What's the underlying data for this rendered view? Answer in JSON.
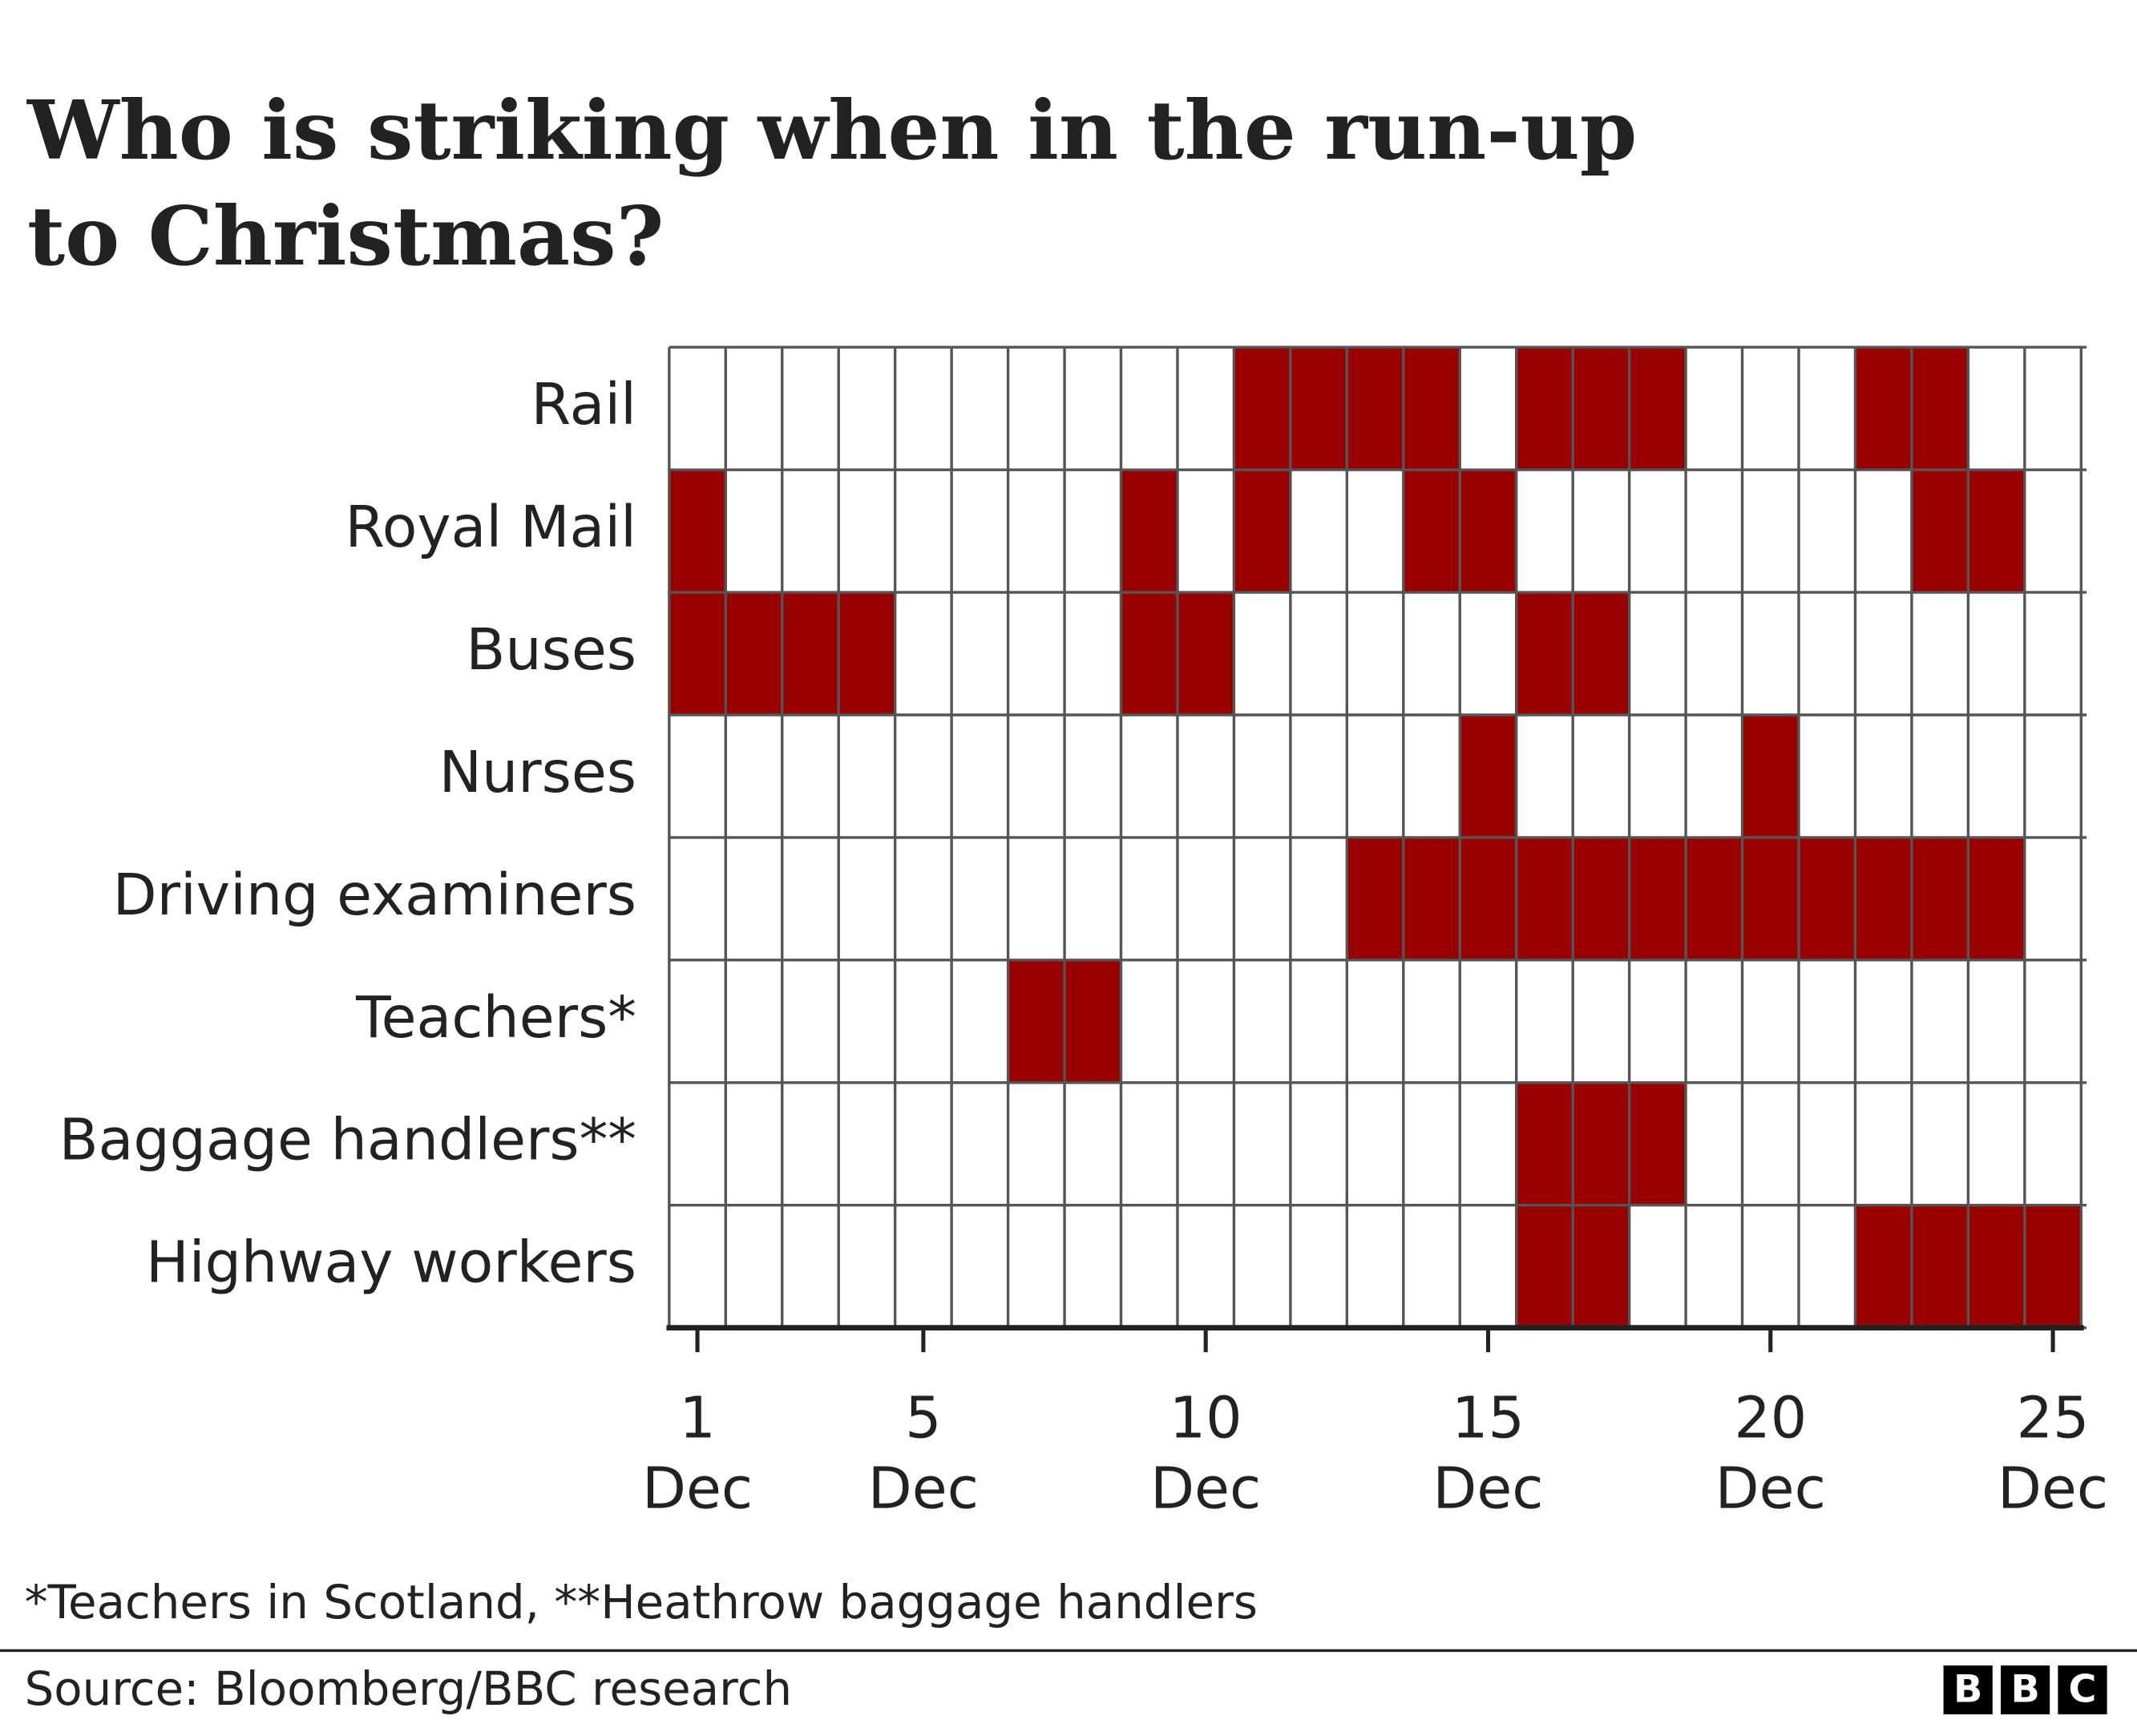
{
  "chart_data": {
    "type": "timeline",
    "title": "Who is striking when in the run-up to Christmas?",
    "series": [
      {
        "name": "Rail",
        "days": [
          11,
          12,
          13,
          14,
          16,
          17,
          18,
          22,
          23
        ]
      },
      {
        "name": "Royal Mail",
        "days": [
          1,
          9,
          11,
          14,
          15,
          23,
          24
        ]
      },
      {
        "name": "Buses",
        "days": [
          1,
          2,
          3,
          4,
          9,
          10,
          16,
          17
        ]
      },
      {
        "name": "Nurses",
        "days": [
          15,
          20
        ]
      },
      {
        "name": "Driving examiners",
        "days": [
          13,
          14,
          15,
          16,
          17,
          18,
          19,
          20,
          21,
          22,
          23,
          24
        ]
      },
      {
        "name": "Teachers*",
        "days": [
          7,
          8
        ]
      },
      {
        "name": "Baggage handlers**",
        "days": [
          16,
          17,
          18
        ]
      },
      {
        "name": "Highway workers",
        "days": [
          16,
          17,
          22,
          23,
          24,
          25
        ]
      }
    ],
    "color": "#990000",
    "xlim": [
      0.5,
      25.5
    ],
    "xticks": [
      {
        "value": 1,
        "label": "1 Dec"
      },
      {
        "value": 5,
        "label": "5 Dec"
      },
      {
        "value": 10,
        "label": "10 Dec"
      },
      {
        "value": 15,
        "label": "15 Dec"
      },
      {
        "value": 20,
        "label": "20 Dec"
      },
      {
        "value": 25,
        "label": "25 Dec"
      }
    ],
    "footnote": "*Teachers in Scotland, **Heathrow baggage handlers",
    "source": "Source: Bloomberg/BBC research",
    "brand": [
      "B",
      "B",
      "C"
    ]
  }
}
